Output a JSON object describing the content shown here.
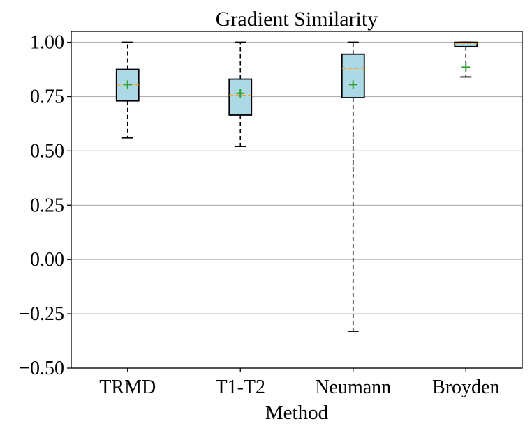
{
  "chart_data": {
    "type": "box",
    "title": "Gradient Similarity",
    "xlabel": "Method",
    "ylabel": "",
    "ylim": [
      -0.5,
      1.05
    ],
    "yticks": [
      -0.5,
      -0.25,
      0.0,
      0.25,
      0.5,
      0.75,
      1.0
    ],
    "ytick_labels": [
      "−0.50",
      "−0.25",
      "0.00",
      "0.25",
      "0.50",
      "0.75",
      "1.00"
    ],
    "grid": "y-major",
    "colors": {
      "box_fill": "#add8e6",
      "median": "#ff9f1c",
      "mean": "#2ca02c",
      "grid": "#b0b0b0"
    },
    "categories": [
      "TRMD",
      "T1-T2",
      "Neumann",
      "Broyden"
    ],
    "boxes": [
      {
        "name": "TRMD",
        "whisker_low": 0.56,
        "q1": 0.73,
        "median": 0.805,
        "q3": 0.875,
        "whisker_high": 1.0,
        "mean": 0.805
      },
      {
        "name": "T1-T2",
        "whisker_low": 0.52,
        "q1": 0.665,
        "median": 0.755,
        "q3": 0.83,
        "whisker_high": 1.0,
        "mean": 0.765
      },
      {
        "name": "Neumann",
        "whisker_low": -0.33,
        "q1": 0.745,
        "median": 0.88,
        "q3": 0.945,
        "whisker_high": 1.0,
        "mean": 0.805
      },
      {
        "name": "Broyden",
        "whisker_low": 0.84,
        "q1": 0.98,
        "median": 0.995,
        "q3": 1.0,
        "whisker_high": 1.0,
        "mean": 0.885
      }
    ]
  }
}
